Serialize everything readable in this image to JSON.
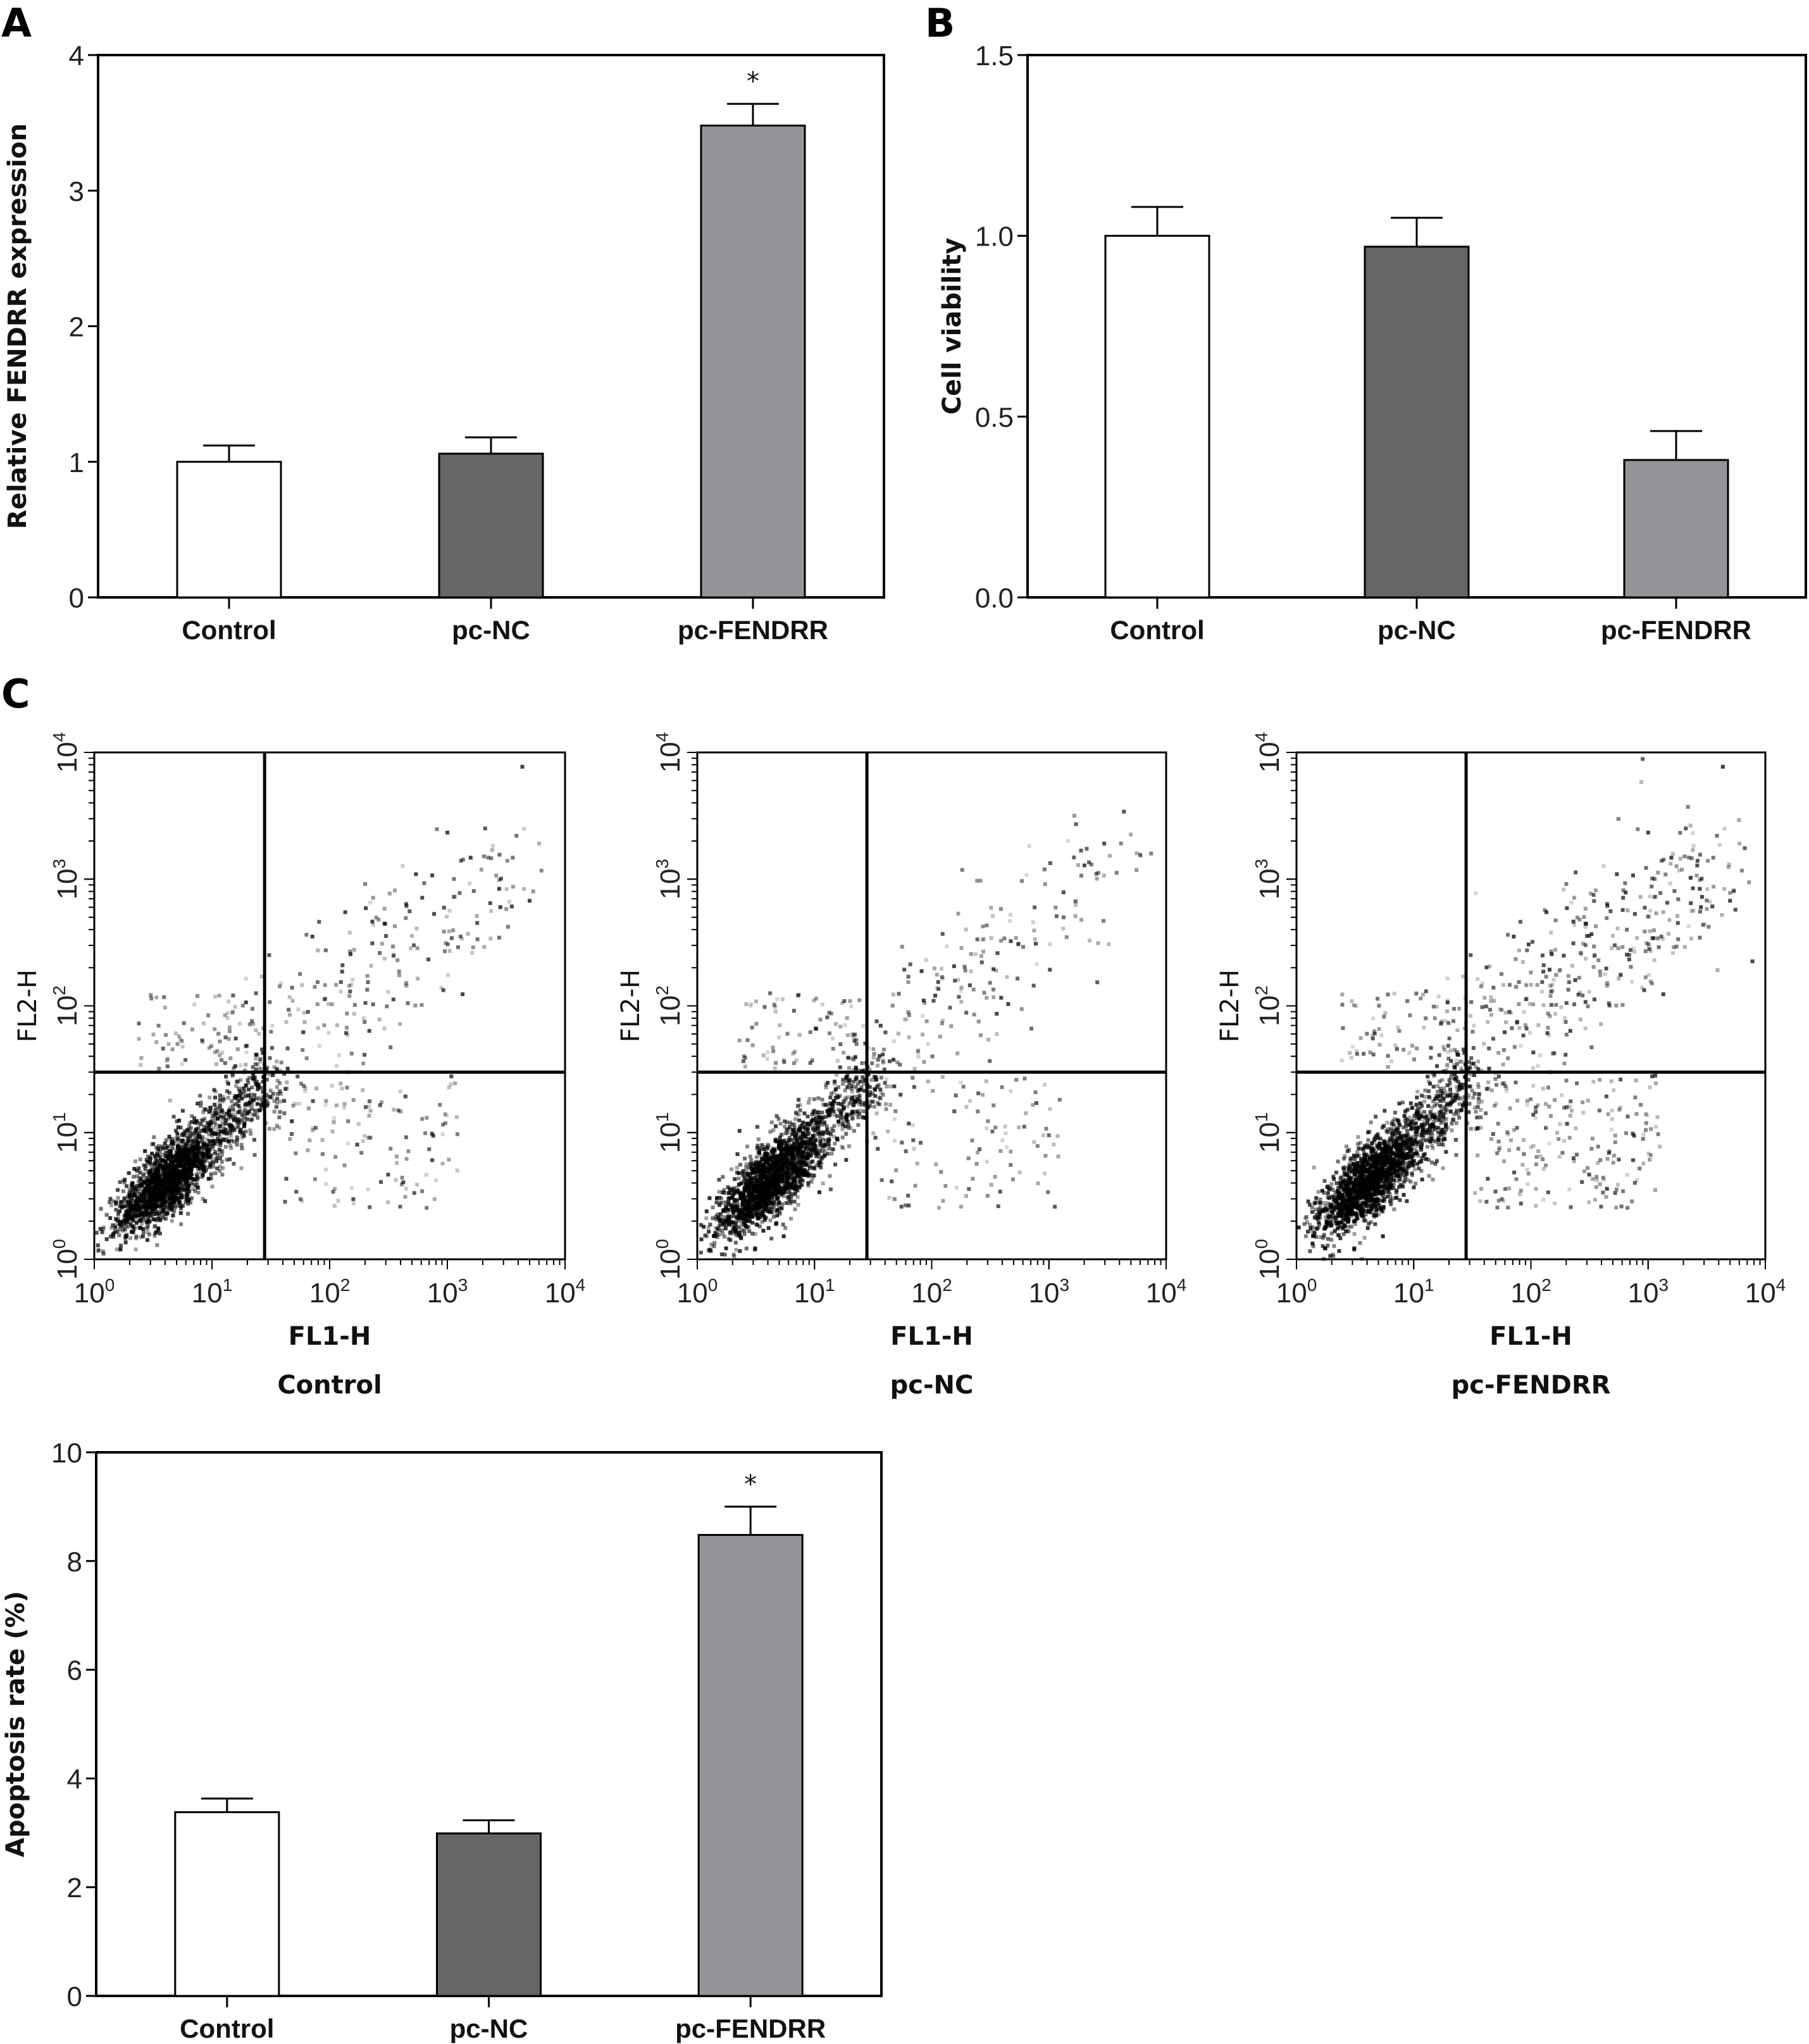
{
  "panels": {
    "A": {
      "letter": "A"
    },
    "B": {
      "letter": "B"
    },
    "C": {
      "letter": "C"
    }
  },
  "colors": {
    "Control": "#ffffff",
    "pc-NC": "#656668",
    "pc-FENDRR": "#949598",
    "axis": "#000000"
  },
  "chart_data": [
    {
      "id": "A",
      "type": "bar",
      "title": "",
      "xlabel": "",
      "ylabel": "Relative FENDRR expression",
      "categories": [
        "Control",
        "pc-NC",
        "pc-FENDRR"
      ],
      "values": [
        1.0,
        1.06,
        3.48
      ],
      "error_upper": [
        0.12,
        0.12,
        0.16
      ],
      "significance": [
        "",
        "",
        "*"
      ],
      "ylim": [
        0,
        4
      ],
      "yticks": [
        0,
        1,
        2,
        3,
        4
      ],
      "ytick_labels": [
        "0",
        "1",
        "2",
        "3",
        "4"
      ],
      "grid": false
    },
    {
      "id": "B",
      "type": "bar",
      "title": "",
      "xlabel": "",
      "ylabel": "Cell viability",
      "categories": [
        "Control",
        "pc-NC",
        "pc-FENDRR"
      ],
      "values": [
        1.0,
        0.97,
        0.38
      ],
      "error_upper": [
        0.08,
        0.08,
        0.08
      ],
      "significance": [
        "",
        "",
        ""
      ],
      "ylim": [
        0,
        1.5
      ],
      "yticks": [
        0,
        0.5,
        1.0,
        1.5
      ],
      "ytick_labels": [
        "0.0",
        "0.5",
        "1.0",
        "1.5"
      ],
      "grid": false
    },
    {
      "id": "C-flow-control",
      "type": "scatter",
      "title": "Control",
      "xlabel": "FL1-H",
      "ylabel": "FL2-H",
      "xscale": "log",
      "yscale": "log",
      "xlim": [
        1,
        10000
      ],
      "ylim": [
        1,
        10000
      ],
      "tick_labels": [
        "10^0",
        "10^1",
        "10^2",
        "10^3",
        "10^4"
      ],
      "quadrant_gate": {
        "x": 28,
        "y": 30
      },
      "population_description": "dense cluster near (4,4) lower-left; sparse events in upper-right extending to ~5x10^3; few in upper-left and lower-right",
      "upper_right_density": 0.6
    },
    {
      "id": "C-flow-pcNC",
      "type": "scatter",
      "title": "pc-NC",
      "xlabel": "FL1-H",
      "ylabel": "FL2-H",
      "xscale": "log",
      "yscale": "log",
      "xlim": [
        1,
        10000
      ],
      "ylim": [
        1,
        10000
      ],
      "tick_labels": [
        "10^0",
        "10^1",
        "10^2",
        "10^3",
        "10^4"
      ],
      "quadrant_gate": {
        "x": 28,
        "y": 30
      },
      "population_description": "dense cluster near (4,4) lower-left; sparse events in upper-right and lower-right",
      "upper_right_density": 0.5
    },
    {
      "id": "C-flow-pcFENDRR",
      "type": "scatter",
      "title": "pc-FENDRR",
      "xlabel": "FL1-H",
      "ylabel": "FL2-H",
      "xscale": "log",
      "yscale": "log",
      "xlim": [
        1,
        10000
      ],
      "ylim": [
        1,
        10000
      ],
      "tick_labels": [
        "10^0",
        "10^1",
        "10^2",
        "10^3",
        "10^4"
      ],
      "quadrant_gate": {
        "x": 28,
        "y": 30
      },
      "population_description": "dense cluster near (5,5) lower-left; many events in upper-right and lower-right quadrants",
      "upper_right_density": 1.0
    },
    {
      "id": "C-bar",
      "type": "bar",
      "title": "",
      "xlabel": "",
      "ylabel": "Apoptosis rate (%)",
      "categories": [
        "Control",
        "pc-NC",
        "pc-FENDRR"
      ],
      "values": [
        3.38,
        2.99,
        8.48
      ],
      "error_upper": [
        0.25,
        0.24,
        0.52
      ],
      "significance": [
        "",
        "",
        "*"
      ],
      "ylim": [
        0,
        10
      ],
      "yticks": [
        0,
        2,
        4,
        6,
        8,
        10
      ],
      "ytick_labels": [
        "0",
        "2",
        "4",
        "6",
        "8",
        "10"
      ],
      "grid": false
    }
  ]
}
